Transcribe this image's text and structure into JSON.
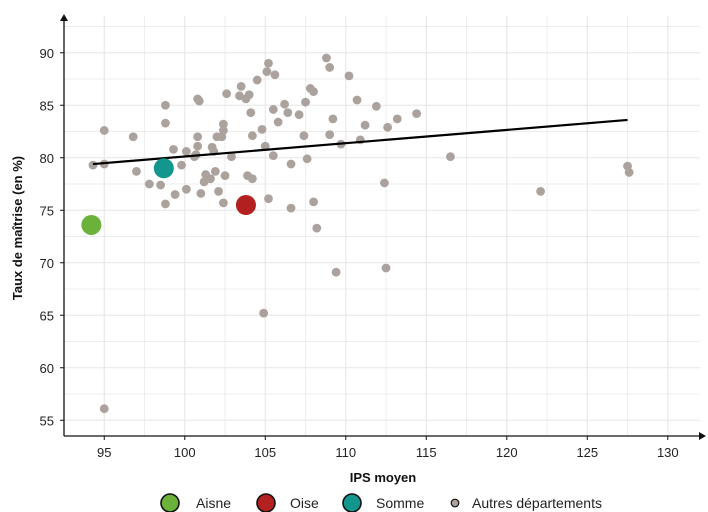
{
  "chart_data": {
    "type": "scatter",
    "xlabel": "IPS moyen",
    "ylabel": "Taux de maîtrise (en %)",
    "xlim": [
      92.5,
      132
    ],
    "ylim": [
      53.5,
      93.5
    ],
    "xticks": [
      95,
      100,
      105,
      110,
      115,
      120,
      125,
      130
    ],
    "yticks": [
      55,
      60,
      65,
      70,
      75,
      80,
      85,
      90
    ],
    "grid": true,
    "legend_position": "bottom",
    "colors": {
      "grid": "#e6e6e6",
      "others": "#aba29d",
      "Aisne": "#6ab23a",
      "Oise": "#b32020",
      "Somme": "#12968d",
      "trend": "#000000"
    },
    "trend_line": {
      "x": [
        94.3,
        127.5
      ],
      "y": [
        79.4,
        83.6
      ]
    },
    "series": [
      {
        "name": "Aisne",
        "points": [
          [
            94.2,
            73.6
          ]
        ]
      },
      {
        "name": "Oise",
        "points": [
          [
            103.8,
            75.5
          ]
        ]
      },
      {
        "name": "Somme",
        "points": [
          [
            98.7,
            79.0
          ]
        ]
      },
      {
        "name": "Autres départements",
        "points": [
          [
            94.3,
            79.3
          ],
          [
            95.0,
            79.4
          ],
          [
            95.0,
            82.6
          ],
          [
            95.0,
            56.1
          ],
          [
            96.8,
            82.0
          ],
          [
            97.0,
            78.7
          ],
          [
            97.8,
            77.5
          ],
          [
            98.5,
            77.4
          ],
          [
            98.8,
            75.6
          ],
          [
            98.8,
            83.3
          ],
          [
            98.8,
            85.0
          ],
          [
            99.3,
            80.8
          ],
          [
            99.4,
            76.5
          ],
          [
            99.8,
            79.3
          ],
          [
            100.1,
            80.6
          ],
          [
            100.1,
            77.0
          ],
          [
            100.6,
            80.1
          ],
          [
            100.7,
            80.3
          ],
          [
            100.8,
            81.1
          ],
          [
            100.8,
            82.0
          ],
          [
            100.8,
            85.6
          ],
          [
            100.9,
            85.4
          ],
          [
            101.0,
            76.6
          ],
          [
            101.2,
            77.7
          ],
          [
            101.3,
            78.4
          ],
          [
            101.6,
            78.0
          ],
          [
            101.7,
            81.0
          ],
          [
            101.8,
            80.6
          ],
          [
            101.9,
            78.7
          ],
          [
            102.0,
            82.0
          ],
          [
            102.1,
            76.8
          ],
          [
            102.3,
            82.0
          ],
          [
            102.4,
            82.6
          ],
          [
            102.4,
            83.2
          ],
          [
            102.4,
            75.7
          ],
          [
            102.5,
            78.3
          ],
          [
            102.6,
            86.1
          ],
          [
            102.9,
            80.1
          ],
          [
            103.4,
            85.9
          ],
          [
            103.5,
            86.8
          ],
          [
            103.8,
            85.6
          ],
          [
            103.9,
            78.3
          ],
          [
            104.0,
            86.0
          ],
          [
            104.1,
            84.3
          ],
          [
            104.2,
            82.1
          ],
          [
            104.2,
            78.0
          ],
          [
            104.5,
            87.4
          ],
          [
            104.8,
            82.7
          ],
          [
            105.0,
            81.1
          ],
          [
            105.1,
            88.2
          ],
          [
            105.2,
            89.0
          ],
          [
            105.2,
            76.1
          ],
          [
            104.9,
            65.2
          ],
          [
            105.5,
            84.6
          ],
          [
            105.5,
            80.2
          ],
          [
            105.6,
            87.9
          ],
          [
            105.8,
            83.4
          ],
          [
            106.2,
            85.1
          ],
          [
            106.4,
            84.3
          ],
          [
            106.6,
            79.4
          ],
          [
            106.6,
            75.2
          ],
          [
            107.1,
            84.1
          ],
          [
            107.4,
            82.1
          ],
          [
            107.5,
            85.3
          ],
          [
            107.6,
            79.9
          ],
          [
            107.8,
            86.6
          ],
          [
            108.0,
            86.3
          ],
          [
            108.0,
            75.8
          ],
          [
            108.2,
            73.3
          ],
          [
            108.8,
            89.5
          ],
          [
            109.0,
            82.2
          ],
          [
            109.0,
            88.6
          ],
          [
            109.2,
            83.7
          ],
          [
            109.4,
            69.1
          ],
          [
            109.7,
            81.3
          ],
          [
            110.2,
            87.8
          ],
          [
            110.7,
            85.5
          ],
          [
            110.9,
            81.7
          ],
          [
            111.2,
            83.1
          ],
          [
            111.9,
            84.9
          ],
          [
            112.4,
            77.6
          ],
          [
            112.5,
            69.5
          ],
          [
            112.6,
            82.9
          ],
          [
            113.2,
            83.7
          ],
          [
            114.4,
            84.2
          ],
          [
            116.5,
            80.1
          ],
          [
            122.1,
            76.8
          ],
          [
            127.5,
            79.2
          ],
          [
            127.6,
            78.6
          ]
        ]
      }
    ]
  }
}
